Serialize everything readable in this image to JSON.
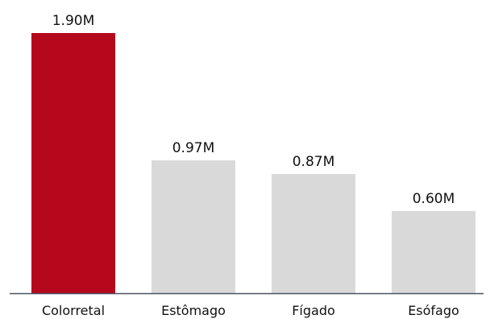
{
  "chart_data": {
    "type": "bar",
    "title": "",
    "xlabel": "",
    "ylabel": "",
    "categories": [
      "Colorretal",
      "Estômago",
      "Fígado",
      "Esófago"
    ],
    "values": [
      1.9,
      0.97,
      0.87,
      0.6
    ],
    "value_labels": [
      "1.90M",
      "0.97M",
      "0.87M",
      "0.60M"
    ],
    "unit": "M",
    "ylim": [
      0,
      2.0
    ],
    "grid": false,
    "bar_colors": [
      "#b5081d",
      "#d9d9d9",
      "#d9d9d9",
      "#d9d9d9"
    ],
    "axis_color": "#4a5364"
  }
}
